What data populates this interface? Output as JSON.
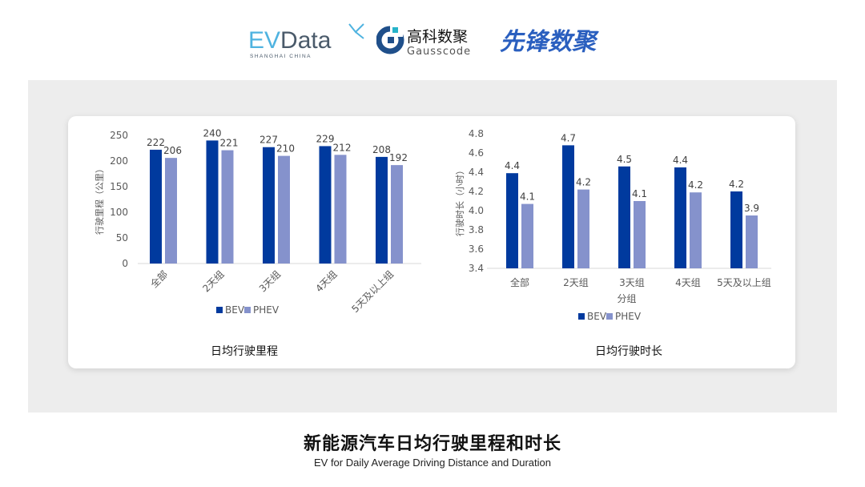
{
  "logos": {
    "evdata": {
      "text": "EVData",
      "subtitle": "SHANGHAI CHINA"
    },
    "gausscode": {
      "text_cn": "高科数聚",
      "text_en": "Gausscode"
    },
    "xianfeng": {
      "text": "先锋数聚"
    }
  },
  "footer": {
    "title": "新能源汽车日均行驶里程和时长",
    "subtitle": "EV for Daily Average Driving Distance and Duration"
  },
  "colors": {
    "BEV": "#003a9e",
    "PHEV": "#8592cc",
    "panel": "#ededed"
  },
  "chart_data": [
    {
      "type": "bar",
      "title": "日均行驶里程",
      "ylabel": "行驶里程（公里）",
      "xlabel": "",
      "ylim": [
        0,
        250
      ],
      "yticks": [
        0,
        50,
        100,
        150,
        200,
        250
      ],
      "categories": [
        "全部",
        "2天组",
        "3天组",
        "4天组",
        "5天及以上组"
      ],
      "series": [
        {
          "name": "BEV",
          "values": [
            222,
            240,
            227,
            229,
            208
          ],
          "labels": [
            "222",
            "240",
            "227",
            "229",
            "208"
          ]
        },
        {
          "name": "PHEV",
          "values": [
            206,
            221,
            210,
            212,
            192
          ],
          "labels": [
            "206",
            "221",
            "210",
            "212",
            "192"
          ]
        }
      ],
      "legend": "bottom",
      "grid": false
    },
    {
      "type": "bar",
      "title": "日均行驶时长",
      "ylabel": "行驶时长（小时）",
      "xlabel": "分组",
      "ylim": [
        3.4,
        4.8
      ],
      "yticks": [
        "3.4",
        "3.6",
        "3.8",
        "4.0",
        "4.2",
        "4.4",
        "4.6",
        "4.8"
      ],
      "categories": [
        "全部",
        "2天组",
        "3天组",
        "4天组",
        "5天及以上组"
      ],
      "series": [
        {
          "name": "BEV",
          "values": [
            4.39,
            4.68,
            4.46,
            4.45,
            4.2
          ],
          "labels": [
            "4.4",
            "4.7",
            "4.5",
            "4.4",
            "4.2"
          ]
        },
        {
          "name": "PHEV",
          "values": [
            4.07,
            4.22,
            4.1,
            4.19,
            3.95
          ],
          "labels": [
            "4.1",
            "4.2",
            "4.1",
            "4.2",
            "3.9"
          ]
        }
      ],
      "legend": "bottom",
      "grid": false
    }
  ]
}
